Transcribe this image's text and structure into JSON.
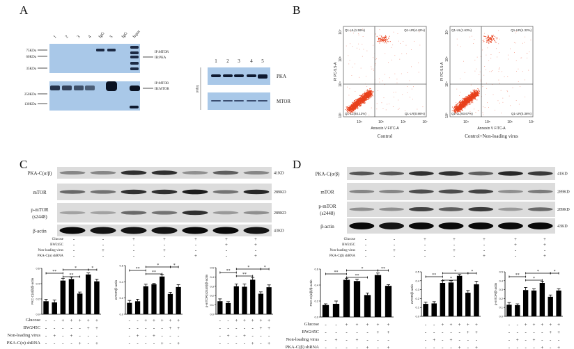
{
  "panel_a": {
    "label": "A",
    "ip_lanes": [
      "1",
      "2",
      "3",
      "4",
      "IgG",
      "5",
      "IgG",
      "Input"
    ],
    "ip_markers_top": [
      "75KDa",
      "60KDa",
      "35KDa"
    ],
    "ip_markers_bottom": [
      "250KDa",
      "130KDa"
    ],
    "ip_right_top": [
      "IP:MTOR",
      "IB:PKA"
    ],
    "ip_right_bottom": [
      "IP:MTOR",
      "IB:MTOR"
    ],
    "input_lanes": [
      "1",
      "2",
      "3",
      "4",
      "5"
    ],
    "input_side_label": "Input",
    "input_bands": [
      "PKA",
      "MTOR"
    ],
    "blot_color": "#a9c8e8"
  },
  "panel_b": {
    "label": "B",
    "x_axis_label": "Annexin V FITC-A",
    "y_axis_label": "PI PC-5.5-A",
    "x_ticks": [
      "10⁴",
      "10⁵",
      "10⁶",
      "10⁷"
    ],
    "y_ticks": [
      "10³",
      "10⁴",
      "10⁶",
      "10⁷"
    ],
    "dot_color": "#e8401c",
    "plots": [
      {
        "title": "Control",
        "UL": "Q1-UL(1.59%)",
        "UR": "Q1-UR(4.42%)",
        "LL": "Q1-LL(93.13%)",
        "LR": "Q1-LR(0.86%)"
      },
      {
        "title": "Control+Non-loading virus",
        "UL": "Q1-UL(1.63%)",
        "UR": "Q1-UR(4.32%)",
        "LL": "Q1-LL(93.67%)",
        "LR": "Q1-LR(0.38%)"
      }
    ]
  },
  "panel_c": {
    "label": "C",
    "blots": [
      {
        "name": "PKA-C(α/β)",
        "kd": "41KD",
        "intensity": [
          0.35,
          0.35,
          0.8,
          0.8,
          0.3,
          0.55,
          0.35
        ]
      },
      {
        "name": "mTOR",
        "kd": "289KD",
        "intensity": [
          0.5,
          0.45,
          0.8,
          0.8,
          0.9,
          0.45,
          0.85
        ]
      },
      {
        "name": "p-mTOR",
        "name2": "(s2448)",
        "kd": "289KD",
        "intensity": [
          0.2,
          0.2,
          0.5,
          0.45,
          0.8,
          0.25,
          0.3
        ]
      },
      {
        "name": "β-actin",
        "kd": "43KD",
        "intensity": [
          1,
          0.95,
          0.95,
          0.95,
          1,
          1,
          0.95
        ]
      }
    ],
    "conditions": [
      {
        "label": "Glucose",
        "signs": [
          "-",
          "-",
          "+",
          "+",
          "+",
          "+",
          "+"
        ]
      },
      {
        "label": "BW245C",
        "signs": [
          "-",
          "-",
          "-",
          "-",
          "-",
          "+",
          "+"
        ]
      },
      {
        "label": "Non-loading virus",
        "signs": [
          "-",
          "+",
          "-",
          "+",
          "-",
          "-",
          "-"
        ]
      },
      {
        "label": "PKA-C(α) shRNA",
        "signs": [
          "-",
          "-",
          "-",
          "-",
          "+",
          "-",
          "+"
        ]
      }
    ]
  },
  "panel_d": {
    "label": "D",
    "blots": [
      {
        "name": "PKA-C(α/β)",
        "kd": "41KD",
        "intensity": [
          0.6,
          0.6,
          0.8,
          0.8,
          0.55,
          0.85,
          0.75
        ]
      },
      {
        "name": "mTOR",
        "kd": "289KD",
        "intensity": [
          0.35,
          0.35,
          0.65,
          0.65,
          0.7,
          0.3,
          0.4
        ]
      },
      {
        "name": "p-mTOR",
        "name2": "(s2448)",
        "kd": "289KD",
        "intensity": [
          0.3,
          0.3,
          0.7,
          0.55,
          0.75,
          0.25,
          0.5
        ]
      },
      {
        "name": "β-actin",
        "kd": "43KD",
        "intensity": [
          1,
          0.95,
          1,
          1,
          1,
          1,
          1
        ]
      }
    ],
    "conditions": [
      {
        "label": "Glucose",
        "signs": [
          "-",
          "-",
          "+",
          "+",
          "+",
          "+",
          "+"
        ]
      },
      {
        "label": "BW245C",
        "signs": [
          "-",
          "-",
          "-",
          "-",
          "-",
          "+",
          "+"
        ]
      },
      {
        "label": "Non-loading virus",
        "signs": [
          "-",
          "+",
          "-",
          "+",
          "-",
          "-",
          "-"
        ]
      },
      {
        "label": "PKA-C(β) shRNA",
        "signs": [
          "-",
          "-",
          "-",
          "-",
          "+",
          "-",
          "+"
        ]
      }
    ]
  },
  "chart_data": [
    {
      "type": "bar",
      "panel": "C",
      "ylabel": "PKC-C(α/β)/β-actin",
      "ylim": [
        0,
        0.6
      ],
      "yticks": [
        "0.0",
        "0.2",
        "0.4",
        "0.6"
      ],
      "values": [
        0.17,
        0.155,
        0.44,
        0.46,
        0.27,
        0.52,
        0.43
      ],
      "errors": [
        0.025,
        0.03,
        0.03,
        0.025,
        0.02,
        0.02,
        0.03
      ],
      "significance": [
        {
          "from": 1,
          "to": 3,
          "label": "**"
        },
        {
          "from": 3,
          "to": 5,
          "label": "**"
        },
        {
          "from": 3,
          "to": 6,
          "label": "*"
        },
        {
          "from": 6,
          "to": 7,
          "label": "*"
        }
      ]
    },
    {
      "type": "bar",
      "panel": "C",
      "ylabel": "mTOR/β-actin",
      "ylim": [
        0,
        0.6
      ],
      "yticks": [
        "0.0",
        "0.2",
        "0.4",
        "0.6"
      ],
      "values": [
        0.14,
        0.16,
        0.345,
        0.37,
        0.465,
        0.25,
        0.335
      ],
      "errors": [
        0.03,
        0.025,
        0.025,
        0.01,
        0.025,
        0.02,
        0.03
      ],
      "significance": [
        {
          "from": 1,
          "to": 3,
          "label": "**"
        },
        {
          "from": 3,
          "to": 5,
          "label": "**"
        },
        {
          "from": 3,
          "to": 6,
          "label": "*"
        },
        {
          "from": 6,
          "to": 7,
          "label": "*"
        }
      ]
    },
    {
      "type": "bar",
      "panel": "C",
      "ylabel": "p-mTOR(s2448)/β-actin",
      "ylim": [
        0,
        0.5
      ],
      "yticks": [
        "0.0",
        "0.1",
        "0.2",
        "0.3",
        "0.4",
        "0.5"
      ],
      "values": [
        0.14,
        0.12,
        0.3,
        0.295,
        0.37,
        0.22,
        0.29
      ],
      "errors": [
        0.025,
        0.015,
        0.025,
        0.03,
        0.025,
        0.02,
        0.025
      ],
      "significance": [
        {
          "from": 1,
          "to": 3,
          "label": "**"
        },
        {
          "from": 3,
          "to": 5,
          "label": "**"
        },
        {
          "from": 3,
          "to": 6,
          "label": "*"
        },
        {
          "from": 6,
          "to": 7,
          "label": "*"
        }
      ]
    },
    {
      "type": "bar",
      "panel": "D",
      "ylabel": "PKA-C(α/β)/β-actin",
      "ylim": [
        0,
        0.6
      ],
      "yticks": [
        "0.0",
        "0.2",
        "0.4",
        "0.6"
      ],
      "values": [
        0.15,
        0.165,
        0.465,
        0.45,
        0.275,
        0.525,
        0.39
      ],
      "errors": [
        0.015,
        0.035,
        0.02,
        0.025,
        0.025,
        0.025,
        0.015
      ],
      "significance": [
        {
          "from": 1,
          "to": 3,
          "label": "**"
        },
        {
          "from": 3,
          "to": 5,
          "label": "**"
        },
        {
          "from": 3,
          "to": 6,
          "label": "*"
        },
        {
          "from": 6,
          "to": 7,
          "label": "**"
        }
      ]
    },
    {
      "type": "bar",
      "panel": "D",
      "ylabel": "mTOR/β-actin",
      "ylim": [
        0,
        0.5
      ],
      "yticks": [
        "0.0",
        "0.1",
        "0.2",
        "0.3",
        "0.4",
        "0.5"
      ],
      "values": [
        0.14,
        0.145,
        0.375,
        0.38,
        0.455,
        0.265,
        0.36
      ],
      "errors": [
        0.02,
        0.02,
        0.025,
        0.02,
        0.015,
        0.025,
        0.035
      ],
      "significance": [
        {
          "from": 1,
          "to": 3,
          "label": "**"
        },
        {
          "from": 3,
          "to": 5,
          "label": "*"
        },
        {
          "from": 3,
          "to": 6,
          "label": "*"
        },
        {
          "from": 6,
          "to": 7,
          "label": "*"
        }
      ]
    },
    {
      "type": "bar",
      "panel": "D",
      "ylabel": "p-mTOR/β-actin",
      "ylim": [
        0,
        0.5
      ],
      "yticks": [
        "0.0",
        "0.1",
        "0.2",
        "0.3",
        "0.4",
        "0.5"
      ],
      "values": [
        0.13,
        0.125,
        0.295,
        0.29,
        0.375,
        0.22,
        0.29
      ],
      "errors": [
        0.025,
        0.015,
        0.03,
        0.02,
        0.02,
        0.02,
        0.02
      ],
      "significance": [
        {
          "from": 1,
          "to": 3,
          "label": "**"
        },
        {
          "from": 3,
          "to": 5,
          "label": "*"
        },
        {
          "from": 3,
          "to": 6,
          "label": "*"
        },
        {
          "from": 6,
          "to": 7,
          "label": "*"
        }
      ]
    }
  ]
}
